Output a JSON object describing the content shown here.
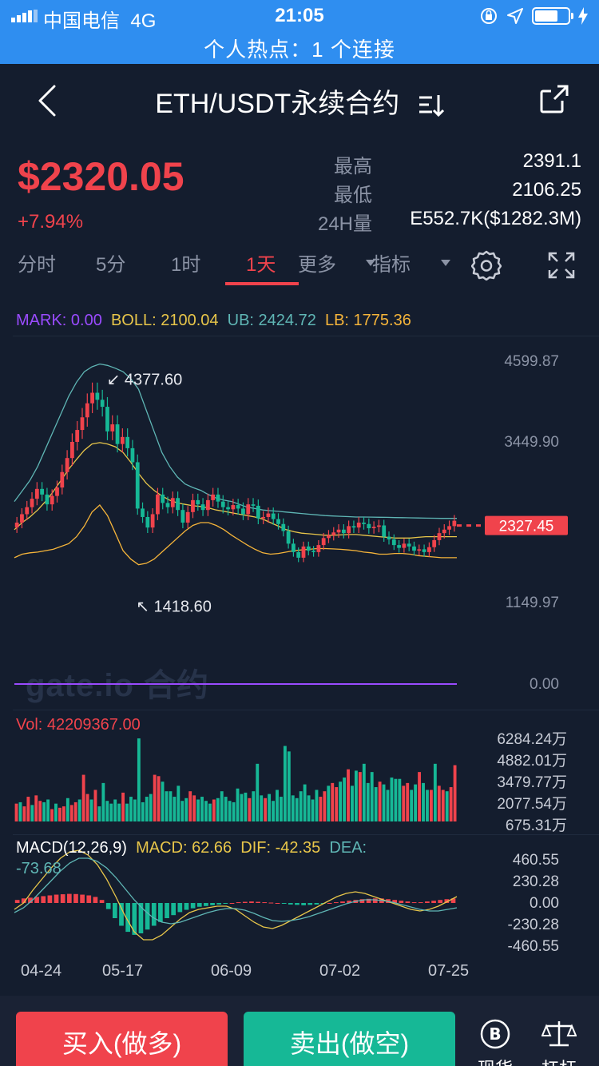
{
  "status": {
    "carrier": "中国电信",
    "network": "4G",
    "time": "21:05",
    "hotspot": "个人热点：1 个连接"
  },
  "header": {
    "title": "ETH/USDT永续合约"
  },
  "ticker": {
    "price": "$2320.05",
    "change": "+7.94%",
    "high_label": "最高",
    "high_value": "2391.1",
    "low_label": "最低",
    "low_value": "2106.25",
    "vol_label": "24H量",
    "vol_value": "E552.7K($1282.3M)"
  },
  "tabs": [
    "分时",
    "5分",
    "1时",
    "1天",
    "更多",
    "指标"
  ],
  "active_tab": "1天",
  "colors": {
    "up": "#f0434c",
    "down": "#16b896",
    "accent": "#2f8ef0"
  },
  "chart_data": {
    "type": "candlestick",
    "main_legend": {
      "mark": "MARK: 0.00",
      "boll": "BOLL: 2100.04",
      "ub": "UB: 2424.72",
      "lb": "LB: 1775.36"
    },
    "price_axis": [
      "4599.87",
      "3449.90",
      "1149.97",
      "0.00"
    ],
    "last_price_tag": "2327.45",
    "high_marker": "4377.60",
    "low_marker": "1418.60",
    "watermark": "gate.io 合约",
    "volume_legend": "Vol: 42209367.00",
    "volume_axis": [
      "6284.24万",
      "4882.01万",
      "3479.77万",
      "2077.54万",
      "675.31万"
    ],
    "macd_legend": {
      "macd_params": "MACD(12,26,9)",
      "macd": "MACD: 62.66",
      "dif": "DIF: -42.35",
      "dea": "DEA:",
      "dea_value": "-73.68"
    },
    "macd_axis": [
      "460.55",
      "230.28",
      "0.00",
      "-230.28",
      "-460.55"
    ],
    "dates": [
      "04-24",
      "05-17",
      "06-09",
      "07-02",
      "07-25"
    ],
    "closes": [
      2300,
      2420,
      2520,
      2640,
      2780,
      2700,
      2560,
      2680,
      2800,
      3020,
      3220,
      3450,
      3620,
      3800,
      4000,
      4150,
      4050,
      3950,
      3600,
      3700,
      3420,
      3520,
      3360,
      3160,
      2500,
      2380,
      2230,
      2420,
      2700,
      2580,
      2520,
      2650,
      2480,
      2300,
      2450,
      2620,
      2560,
      2480,
      2620,
      2700,
      2600,
      2520,
      2490,
      2550,
      2500,
      2420,
      2560,
      2540,
      2360,
      2380,
      2430,
      2350,
      2280,
      2180,
      2000,
      1880,
      1800,
      1960,
      1900,
      1880,
      1980,
      2080,
      2120,
      2160,
      2200,
      2150,
      2250,
      2230,
      2300,
      2280,
      2220,
      2240,
      2260,
      2100,
      2060,
      1980,
      1940,
      2000,
      1960,
      1900,
      1920,
      1880,
      1950,
      2050,
      2150,
      2200,
      2250,
      2327
    ],
    "upper_band": [
      2600,
      2750,
      2900,
      3100,
      3350,
      3600,
      3850,
      4100,
      4300,
      4450,
      4520,
      4560,
      4540,
      4500,
      4450,
      4350,
      4200,
      3900,
      3600,
      3300,
      3100,
      2950,
      2850,
      2800,
      2760,
      2700,
      2650,
      2620,
      2600,
      2560,
      2520,
      2500,
      2480,
      2470,
      2460,
      2450,
      2440,
      2430,
      2420,
      2410,
      2400,
      2395,
      2390,
      2385,
      2380,
      2380,
      2378,
      2376,
      2375,
      2372,
      2370,
      2368,
      2366,
      2364,
      2362,
      2360,
      2360,
      2360
    ],
    "middle_band": [
      2200,
      2300,
      2380,
      2480,
      2600,
      2740,
      2900,
      3060,
      3200,
      3330,
      3420,
      3440,
      3420,
      3380,
      3300,
      3160,
      3000,
      2860,
      2760,
      2680,
      2620,
      2580,
      2560,
      2540,
      2530,
      2510,
      2480,
      2460,
      2440,
      2420,
      2400,
      2380,
      2350,
      2300,
      2250,
      2200,
      2170,
      2150,
      2140,
      2130,
      2120,
      2120,
      2125,
      2130,
      2130,
      2120,
      2110,
      2100,
      2090,
      2080,
      2080,
      2080,
      2090,
      2100,
      2100,
      2100,
      2100,
      2100
    ],
    "lower_band": [
      1800,
      1850,
      1870,
      1880,
      1900,
      1920,
      1960,
      2000,
      2100,
      2250,
      2450,
      2550,
      2400,
      2150,
      1900,
      1780,
      1700,
      1720,
      1780,
      1880,
      1980,
      2080,
      2180,
      2260,
      2300,
      2300,
      2260,
      2200,
      2120,
      2050,
      1980,
      1920,
      1870,
      1850,
      1860,
      1880,
      1900,
      1910,
      1920,
      1930,
      1930,
      1925,
      1920,
      1910,
      1900,
      1880,
      1870,
      1850,
      1850,
      1860,
      1860,
      1850,
      1830,
      1820,
      1810,
      1800,
      1800,
      1800
    ],
    "volumes": [
      1300,
      1400,
      1100,
      1800,
      1200,
      1900,
      1500,
      1400,
      1600,
      900,
      1300,
      1000,
      1100,
      1700,
      1200,
      1400,
      1600,
      3400,
      2000,
      1600,
      2300,
      1100,
      2800,
      1500,
      1300,
      1600,
      1300,
      2100,
      1300,
      1800,
      1600,
      6050,
      1400,
      1800,
      2000,
      3400,
      3300,
      2900,
      2200,
      2200,
      1800,
      2600,
      1500,
      1700,
      2200,
      1900,
      1600,
      1800,
      1500,
      1300,
      1600,
      1700,
      2200,
      1800,
      1500,
      1400,
      2400,
      2000,
      2100,
      1700,
      2200,
      4200,
      1900,
      1700,
      2000,
      1500,
      2300,
      1800,
      5500,
      5100,
      1900,
      1700,
      2200,
      2700,
      1900,
      1600,
      2300,
      1800,
      2200,
      2600,
      2800,
      2500,
      2900,
      3200,
      3800,
      2600,
      3700,
      3600,
      4200,
      2800,
      3600,
      2500,
      2900,
      2700,
      2300,
      3200,
      3100,
      3100,
      2600,
      2800,
      2300,
      2700,
      3600,
      2800,
      2300,
      2300,
      4200,
      2600,
      2300,
      2200,
      2500,
      4100
    ],
    "macd_hist": [
      40,
      60,
      70,
      80,
      90,
      100,
      110,
      115,
      120,
      118,
      110,
      100,
      80,
      40,
      -80,
      -200,
      -300,
      -380,
      -420,
      -400,
      -350,
      -300,
      -250,
      -200,
      -160,
      -120,
      -90,
      -70,
      -50,
      -40,
      -30,
      -20,
      -10,
      0,
      10,
      15,
      20,
      15,
      10,
      5,
      0,
      -10,
      -20,
      -25,
      -30,
      -25,
      -20,
      -10,
      0,
      10,
      20,
      30,
      40,
      50,
      55,
      60,
      60,
      50,
      40,
      30,
      20,
      10,
      10,
      20,
      30,
      40,
      50,
      60
    ],
    "dif_line": [
      -40,
      0,
      80,
      150,
      220,
      280,
      320,
      330,
      300,
      240,
      150,
      40,
      -80,
      -180,
      -230,
      -230,
      -200,
      -150,
      -100,
      -60,
      -40,
      -30,
      -20,
      -20,
      -40,
      -80,
      -120,
      -150,
      -160,
      -140,
      -110,
      -80,
      -50,
      -20,
      10,
      40,
      60,
      70,
      60,
      40,
      20,
      0,
      -20,
      -40,
      -50,
      -40,
      -20,
      10,
      40
    ],
    "dea_line": [
      -60,
      -30,
      20,
      80,
      140,
      200,
      250,
      280,
      280,
      260,
      220,
      160,
      90,
      20,
      -40,
      -90,
      -120,
      -130,
      -120,
      -100,
      -80,
      -60,
      -45,
      -35,
      -35,
      -45,
      -65,
      -90,
      -110,
      -115,
      -110,
      -100,
      -85,
      -65,
      -45,
      -25,
      -5,
      10,
      20,
      20,
      15,
      5,
      -10,
      -25,
      -40,
      -50,
      -50,
      -40,
      -30
    ]
  },
  "bottom": {
    "buy": "买入(做多)",
    "sell": "卖出(做空)",
    "spot": "现货",
    "leverage": "杠杆"
  }
}
